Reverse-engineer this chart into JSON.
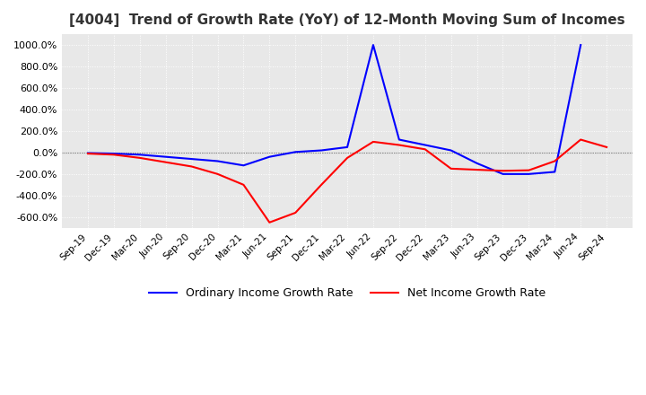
{
  "title": "[4004]  Trend of Growth Rate (YoY) of 12-Month Moving Sum of Incomes",
  "title_fontsize": 11,
  "ylim": [
    -700,
    1100
  ],
  "yticks": [
    -600,
    -400,
    -200,
    0,
    200,
    400,
    600,
    800,
    1000
  ],
  "background_color": "#ffffff",
  "plot_background_color": "#e8e8e8",
  "grid_color": "#ffffff",
  "legend_labels": [
    "Ordinary Income Growth Rate",
    "Net Income Growth Rate"
  ],
  "line_colors": [
    "#0000ff",
    "#ff0000"
  ],
  "x_dates": [
    "Sep-19",
    "Dec-19",
    "Mar-20",
    "Jun-20",
    "Sep-20",
    "Dec-20",
    "Mar-21",
    "Jun-21",
    "Sep-21",
    "Dec-21",
    "Mar-22",
    "Jun-22",
    "Sep-22",
    "Dec-22",
    "Mar-23",
    "Jun-23",
    "Sep-23",
    "Dec-23",
    "Mar-24",
    "Jun-24",
    "Sep-24"
  ],
  "ordinary_income": [
    -5,
    -10,
    -20,
    -40,
    -60,
    -80,
    -120,
    -40,
    5,
    20,
    50,
    1000,
    120,
    70,
    20,
    -100,
    -200,
    -200,
    -180,
    1000,
    null
  ],
  "net_income": [
    -10,
    -20,
    -50,
    -90,
    -130,
    -200,
    -300,
    -650,
    -560,
    -300,
    -50,
    100,
    70,
    30,
    -150,
    -160,
    -170,
    -165,
    -80,
    120,
    50
  ]
}
